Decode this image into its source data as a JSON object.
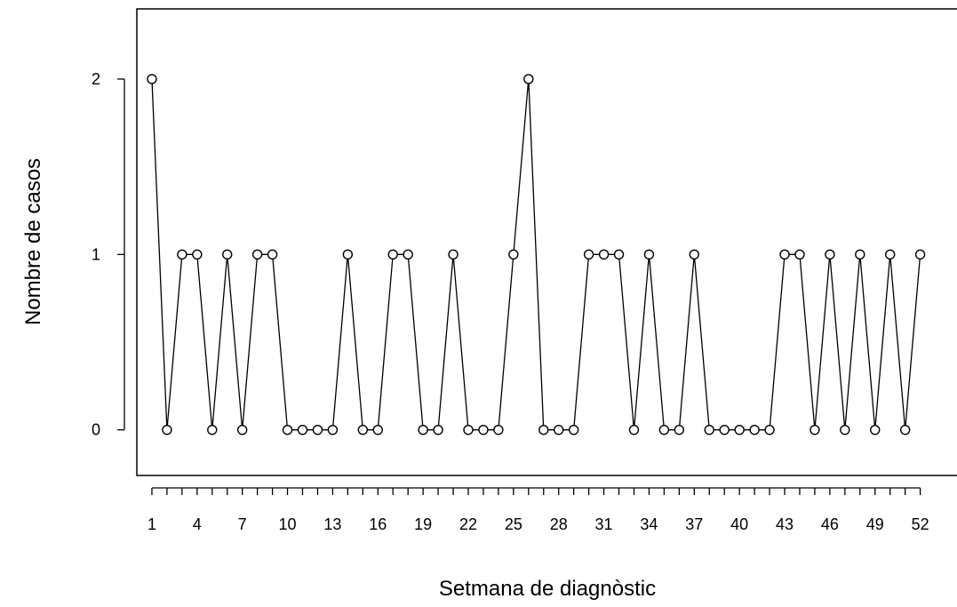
{
  "chart_data": {
    "type": "line",
    "title": "",
    "xlabel": "Setmana de diagnòstic",
    "ylabel": "Nombre de casos",
    "x": [
      1,
      2,
      3,
      4,
      5,
      6,
      7,
      8,
      9,
      10,
      11,
      12,
      13,
      14,
      15,
      16,
      17,
      18,
      19,
      20,
      21,
      22,
      23,
      24,
      25,
      26,
      27,
      28,
      29,
      30,
      31,
      32,
      33,
      34,
      35,
      36,
      37,
      38,
      39,
      40,
      41,
      42,
      43,
      44,
      45,
      46,
      47,
      48,
      49,
      50,
      51,
      52
    ],
    "series": [
      {
        "values": [
          2,
          0,
          1,
          1,
          0,
          1,
          0,
          1,
          1,
          0,
          0,
          0,
          0,
          1,
          0,
          0,
          1,
          1,
          0,
          0,
          1,
          0,
          0,
          0,
          1,
          2,
          0,
          0,
          0,
          1,
          1,
          1,
          0,
          1,
          0,
          0,
          1,
          0,
          0,
          0,
          0,
          0,
          1,
          1,
          0,
          1,
          0,
          1,
          0,
          1,
          0,
          1
        ],
        "color": "#000000",
        "marker": "open-circle"
      }
    ],
    "x_tick_labels": [
      "1",
      "4",
      "7",
      "10",
      "13",
      "16",
      "19",
      "22",
      "25",
      "28",
      "31",
      "34",
      "37",
      "40",
      "43",
      "46",
      "49",
      "52"
    ],
    "x_tick_positions": [
      1,
      4,
      7,
      10,
      13,
      16,
      19,
      22,
      25,
      28,
      31,
      34,
      37,
      40,
      43,
      46,
      49,
      52
    ],
    "y_tick_labels": [
      "0",
      "1",
      "2"
    ],
    "y_tick_positions": [
      0,
      1,
      2
    ],
    "xlim": [
      0,
      54.5
    ],
    "ylim": [
      -0.26,
      2.4
    ],
    "grid": false,
    "legend": "none",
    "box": true
  }
}
